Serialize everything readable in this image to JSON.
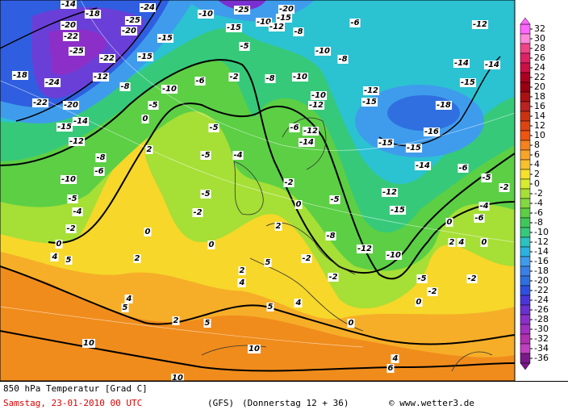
{
  "footer": {
    "title": "850 hPa Temperatur [Grad C]",
    "date": "Samstag, 23-01-2010  00 UTC",
    "model": "(GFS)",
    "run": "(Donnerstag 12 + 36)",
    "credit": "© www.wetter3.de"
  },
  "colorbar": {
    "ticks": [
      32,
      30,
      28,
      26,
      24,
      22,
      20,
      18,
      16,
      14,
      12,
      10,
      8,
      6,
      4,
      2,
      0,
      -2,
      -4,
      -6,
      -8,
      -10,
      -12,
      -14,
      -16,
      -18,
      -20,
      -22,
      -24,
      -26,
      -28,
      -30,
      -32,
      -34,
      -36
    ],
    "colors": [
      "#ff66ff",
      "#ff88dd",
      "#ee4488",
      "#dd2266",
      "#cc1144",
      "#aa0022",
      "#990011",
      "#aa1111",
      "#bb2222",
      "#cc3311",
      "#dd4411",
      "#ee5511",
      "#f5821e",
      "#f7a52a",
      "#f7c02c",
      "#f5e02a",
      "#d6ec2e",
      "#a6df36",
      "#82d83e",
      "#5ccf45",
      "#3fc85a",
      "#36c97a",
      "#2bc2c0",
      "#2bb2e0",
      "#3f9cec",
      "#3a80e6",
      "#2f6fe0",
      "#2f4fe0",
      "#4a36d8",
      "#6a30d0",
      "#8c2fc8",
      "#a030c0",
      "#b030b0",
      "#c040c0",
      "#7a1a8a"
    ]
  },
  "contour_labels": [
    -14,
    -18,
    -24,
    -25,
    -20,
    -20,
    -22,
    -25,
    -22,
    -18,
    -24,
    -22,
    -20,
    -15,
    -14,
    -12,
    -15,
    -15,
    -10,
    -25,
    -20,
    -15,
    -10,
    -15,
    -12,
    -8,
    -10,
    -10,
    -10,
    -12,
    -8,
    -5,
    -2,
    -6,
    -10,
    -5,
    0,
    -12,
    -8,
    -5,
    -5,
    -5,
    -4,
    -2,
    -10,
    -5,
    -4,
    -2,
    0,
    -8,
    -6,
    2,
    0,
    0,
    2,
    -6,
    -12,
    -14,
    -6,
    -8,
    -12,
    -15,
    -15,
    -15,
    -16,
    -18,
    -15,
    -14,
    -12,
    -14,
    -14,
    -6,
    -5,
    -2,
    -4,
    -6,
    0,
    2,
    4,
    0,
    -12,
    -15,
    -10,
    -12,
    -8,
    -5,
    -2,
    0,
    2,
    5,
    -2,
    -2,
    -5,
    -2,
    2,
    4,
    4,
    5,
    2,
    5,
    10,
    10,
    6,
    4,
    10,
    0,
    0,
    4,
    5,
    4,
    5,
    -2
  ]
}
